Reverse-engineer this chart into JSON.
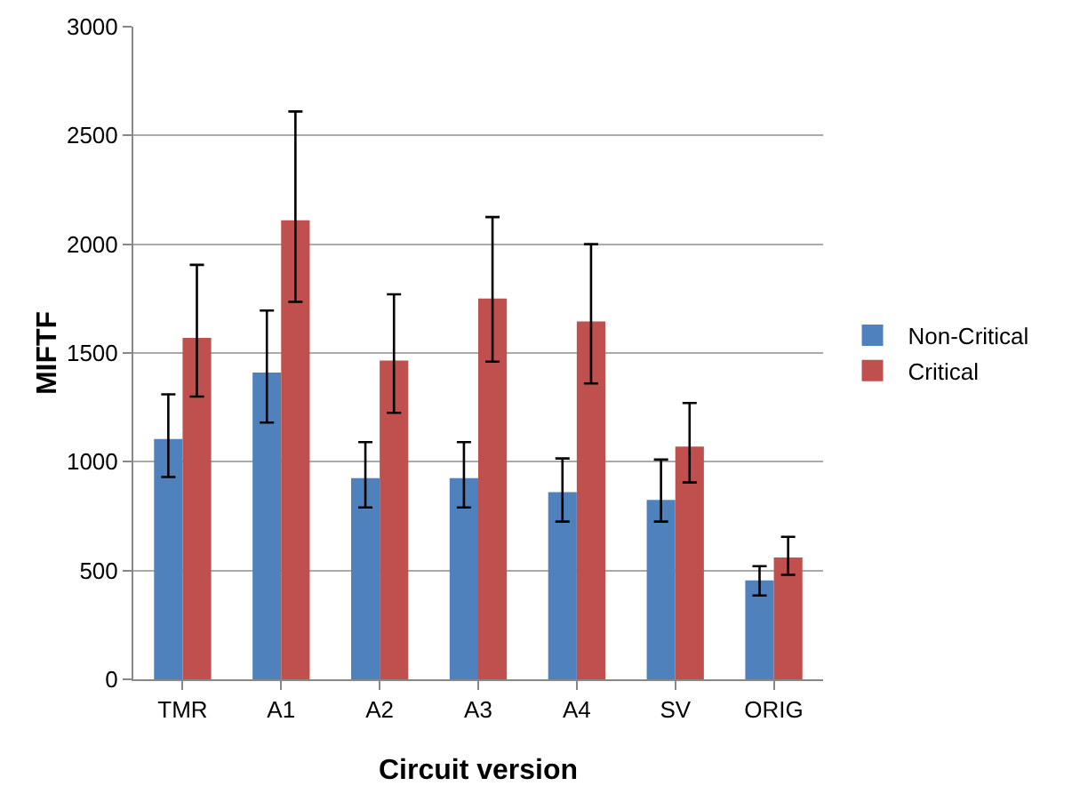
{
  "chart_data": {
    "type": "bar",
    "xlabel": "Circuit version",
    "ylabel": "MIFTF",
    "categories": [
      "TMR",
      "A1",
      "A2",
      "A3",
      "A4",
      "SV",
      "ORIG"
    ],
    "series": [
      {
        "name": "Non-Critical",
        "color": "#4f81bd",
        "values": [
          1105,
          1410,
          925,
          925,
          860,
          825,
          455
        ],
        "errors": [
          [
            930,
            1310
          ],
          [
            1180,
            1695
          ],
          [
            790,
            1090
          ],
          [
            790,
            1090
          ],
          [
            725,
            1015
          ],
          [
            725,
            1010
          ],
          [
            385,
            520
          ]
        ]
      },
      {
        "name": "Critical",
        "color": "#c0504d",
        "values": [
          1570,
          2110,
          1465,
          1750,
          1645,
          1070,
          560
        ],
        "errors": [
          [
            1300,
            1905
          ],
          [
            1735,
            2610
          ],
          [
            1225,
            1770
          ],
          [
            1460,
            2125
          ],
          [
            1360,
            2000
          ],
          [
            905,
            1270
          ],
          [
            480,
            655
          ]
        ]
      }
    ],
    "ylim": [
      0,
      3000
    ],
    "yticks": [
      0,
      500,
      1000,
      1500,
      2000,
      2500,
      3000
    ],
    "grid": "y",
    "legend": "right"
  }
}
